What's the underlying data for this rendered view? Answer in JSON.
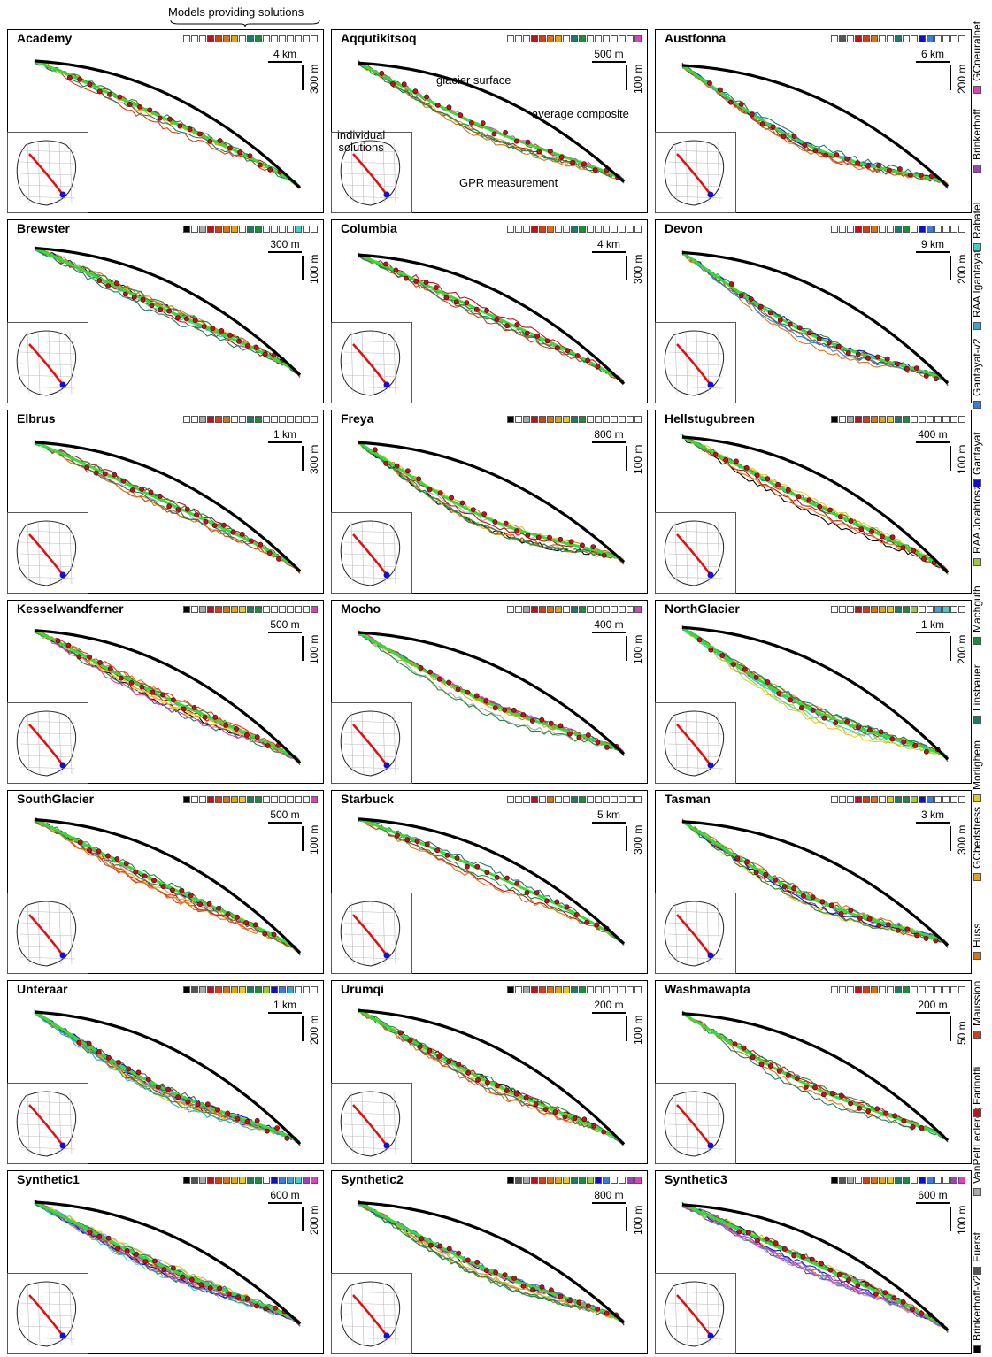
{
  "header": {
    "title": "Models providing solutions"
  },
  "legend": [
    {
      "name": "Brinkerhoff-v2",
      "color": "#000000"
    },
    {
      "name": "Fuerst",
      "color": "#555555"
    },
    {
      "name": "VanPeltLeclercq",
      "color": "#aaaaaa"
    },
    {
      "name": "Farinotti",
      "color": "#c0121c"
    },
    {
      "name": "Maussion",
      "color": "#d2401a"
    },
    {
      "name": "Huss",
      "color": "#d9741a"
    },
    {
      "name": "GCbedstress",
      "color": "#e2a21e"
    },
    {
      "name": "Morlighem",
      "color": "#e9c82c"
    },
    {
      "name": "Linsbauer",
      "color": "#1f7a6a"
    },
    {
      "name": "Machguth",
      "color": "#1f8c3a"
    },
    {
      "name": "RAA Jolahtosz",
      "color": "#9acd32"
    },
    {
      "name": "Gantayat",
      "color": "#1010c8"
    },
    {
      "name": "Gantayat-v2",
      "color": "#3a7de0"
    },
    {
      "name": "RAA Igantayat",
      "color": "#3aa6d8"
    },
    {
      "name": "Rabatel",
      "color": "#40d0c8"
    },
    {
      "name": "Brinkerhoff",
      "color": "#a040c0"
    },
    {
      "name": "GCneuralnet",
      "color": "#e040c0"
    }
  ],
  "annotations": {
    "glacier_surface": "glacier surface",
    "average_composite": "average composite",
    "individual_solutions": "individual\nsolutions",
    "gpr_measurement": "GPR measurement"
  },
  "panels": [
    {
      "name": "Academy",
      "h": "4 km",
      "v": "300 m",
      "models": [
        0,
        0,
        0,
        1,
        1,
        1,
        1,
        0,
        1,
        1,
        0,
        0,
        0,
        0,
        0,
        0,
        0
      ]
    },
    {
      "name": "Aqqutikitsoq",
      "h": "500 m",
      "v": "100 m",
      "models": [
        0,
        0,
        0,
        1,
        1,
        1,
        1,
        0,
        1,
        1,
        0,
        0,
        0,
        0,
        0,
        0,
        1
      ]
    },
    {
      "name": "Austfonna",
      "h": "6 km",
      "v": "200 m",
      "models": [
        0,
        1,
        0,
        1,
        1,
        1,
        0,
        0,
        1,
        0,
        0,
        1,
        1,
        0,
        0,
        0,
        0
      ]
    },
    {
      "name": "Brewster",
      "h": "300 m",
      "v": "100 m",
      "models": [
        1,
        0,
        1,
        1,
        1,
        1,
        1,
        0,
        1,
        1,
        0,
        0,
        0,
        0,
        1,
        0,
        0
      ]
    },
    {
      "name": "Columbia",
      "h": "4 km",
      "v": "300 m",
      "models": [
        0,
        0,
        0,
        1,
        1,
        1,
        0,
        0,
        1,
        1,
        0,
        0,
        0,
        0,
        0,
        0,
        0
      ]
    },
    {
      "name": "Devon",
      "h": "9 km",
      "v": "200 m",
      "models": [
        0,
        0,
        0,
        1,
        1,
        1,
        0,
        0,
        1,
        1,
        0,
        1,
        1,
        0,
        0,
        0,
        0
      ]
    },
    {
      "name": "Elbrus",
      "h": "1 km",
      "v": "300 m",
      "models": [
        0,
        0,
        1,
        1,
        1,
        1,
        0,
        0,
        1,
        1,
        0,
        0,
        0,
        0,
        0,
        0,
        0
      ]
    },
    {
      "name": "Freya",
      "h": "800 m",
      "v": "100 m",
      "models": [
        1,
        0,
        1,
        1,
        1,
        1,
        1,
        1,
        1,
        1,
        0,
        0,
        0,
        0,
        0,
        0,
        0
      ]
    },
    {
      "name": "Hellstugubreen",
      "h": "400 m",
      "v": "100 m",
      "models": [
        1,
        0,
        1,
        1,
        1,
        1,
        1,
        1,
        1,
        1,
        0,
        0,
        0,
        0,
        0,
        0,
        0
      ]
    },
    {
      "name": "Kesselwandferner",
      "h": "500 m",
      "v": "100 m",
      "models": [
        1,
        0,
        1,
        1,
        1,
        1,
        1,
        1,
        1,
        1,
        0,
        0,
        0,
        0,
        0,
        0,
        1
      ]
    },
    {
      "name": "Mocho",
      "h": "400 m",
      "v": "100 m",
      "models": [
        0,
        0,
        1,
        1,
        1,
        1,
        1,
        0,
        1,
        1,
        0,
        0,
        0,
        0,
        0,
        0,
        1
      ]
    },
    {
      "name": "NorthGlacier",
      "h": "1 km",
      "v": "200 m",
      "models": [
        0,
        0,
        0,
        1,
        1,
        1,
        1,
        1,
        1,
        1,
        1,
        0,
        0,
        1,
        1,
        0,
        0
      ]
    },
    {
      "name": "SouthGlacier",
      "h": "500 m",
      "v": "100 m",
      "models": [
        1,
        0,
        0,
        1,
        1,
        1,
        1,
        1,
        1,
        1,
        0,
        0,
        0,
        0,
        0,
        0,
        1
      ]
    },
    {
      "name": "Starbuck",
      "h": "5 km",
      "v": "300 m",
      "models": [
        0,
        0,
        0,
        1,
        0,
        1,
        0,
        0,
        1,
        1,
        0,
        0,
        0,
        0,
        0,
        0,
        0
      ]
    },
    {
      "name": "Tasman",
      "h": "3 km",
      "v": "300 m",
      "models": [
        0,
        0,
        0,
        1,
        1,
        1,
        0,
        1,
        1,
        1,
        1,
        1,
        1,
        0,
        0,
        0,
        0
      ]
    },
    {
      "name": "Unteraar",
      "h": "1 km",
      "v": "200 m",
      "models": [
        1,
        1,
        1,
        1,
        1,
        1,
        1,
        1,
        1,
        1,
        1,
        1,
        1,
        1,
        0,
        0,
        0
      ]
    },
    {
      "name": "Urumqi",
      "h": "200 m",
      "v": "100 m",
      "models": [
        1,
        0,
        1,
        1,
        1,
        1,
        1,
        1,
        1,
        1,
        0,
        0,
        0,
        0,
        0,
        0,
        0
      ]
    },
    {
      "name": "Washmawapta",
      "h": "200 m",
      "v": "50 m",
      "models": [
        0,
        0,
        0,
        1,
        1,
        1,
        0,
        0,
        1,
        1,
        0,
        0,
        0,
        0,
        0,
        0,
        0
      ]
    },
    {
      "name": "Synthetic1",
      "h": "600 m",
      "v": "200 m",
      "models": [
        1,
        1,
        1,
        1,
        1,
        1,
        1,
        1,
        1,
        1,
        0,
        1,
        1,
        1,
        1,
        1,
        1
      ]
    },
    {
      "name": "Synthetic2",
      "h": "800 m",
      "v": "100 m",
      "models": [
        1,
        1,
        1,
        1,
        1,
        1,
        1,
        1,
        1,
        1,
        1,
        1,
        1,
        0,
        0,
        1,
        1
      ]
    },
    {
      "name": "Synthetic3",
      "h": "600 m",
      "v": "100 m",
      "models": [
        1,
        1,
        1,
        0,
        1,
        1,
        1,
        1,
        1,
        1,
        0,
        1,
        1,
        0,
        0,
        1,
        1
      ]
    }
  ],
  "chart_data": {
    "type": "line",
    "title": "",
    "xlabel": "",
    "ylabel": "",
    "series": [
      {
        "name": "glacier surface",
        "color": "#000000"
      },
      {
        "name": "average composite",
        "color": "#33dd33"
      },
      {
        "name": "GPR measurement",
        "color": "#c0121c"
      }
    ]
  }
}
